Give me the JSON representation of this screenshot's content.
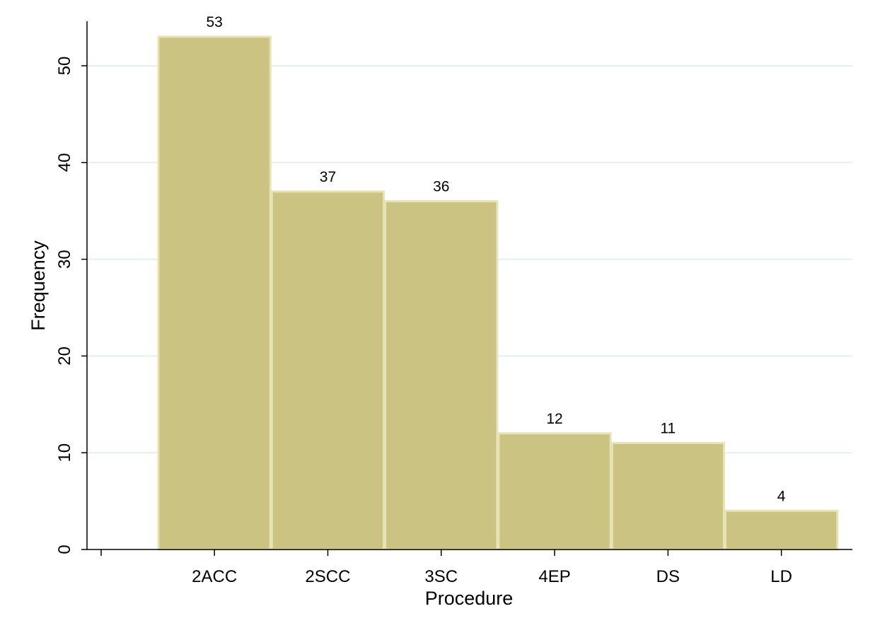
{
  "chart_data": {
    "type": "bar",
    "title": "",
    "xlabel": "Procedure",
    "ylabel": "Frequency",
    "categories": [
      "2ACC",
      "2SCC",
      "3SC",
      "4EP",
      "DS",
      "LD"
    ],
    "values": [
      53,
      37,
      36,
      12,
      11,
      4
    ],
    "data_labels": [
      "53",
      "37",
      "36",
      "12",
      "11",
      "4"
    ],
    "ylim": [
      0,
      54
    ],
    "yticks": [
      0,
      10,
      20,
      30,
      40,
      50
    ],
    "ytick_labels": [
      "0",
      "10",
      "20",
      "30",
      "40",
      "50"
    ],
    "grid": true,
    "legend": "none",
    "colors": {
      "bar_fill": "#cbc382",
      "bar_edge": "#e8e3b4",
      "grid": "#e4efef",
      "axis": "#000000",
      "background": "#ffffff"
    }
  }
}
